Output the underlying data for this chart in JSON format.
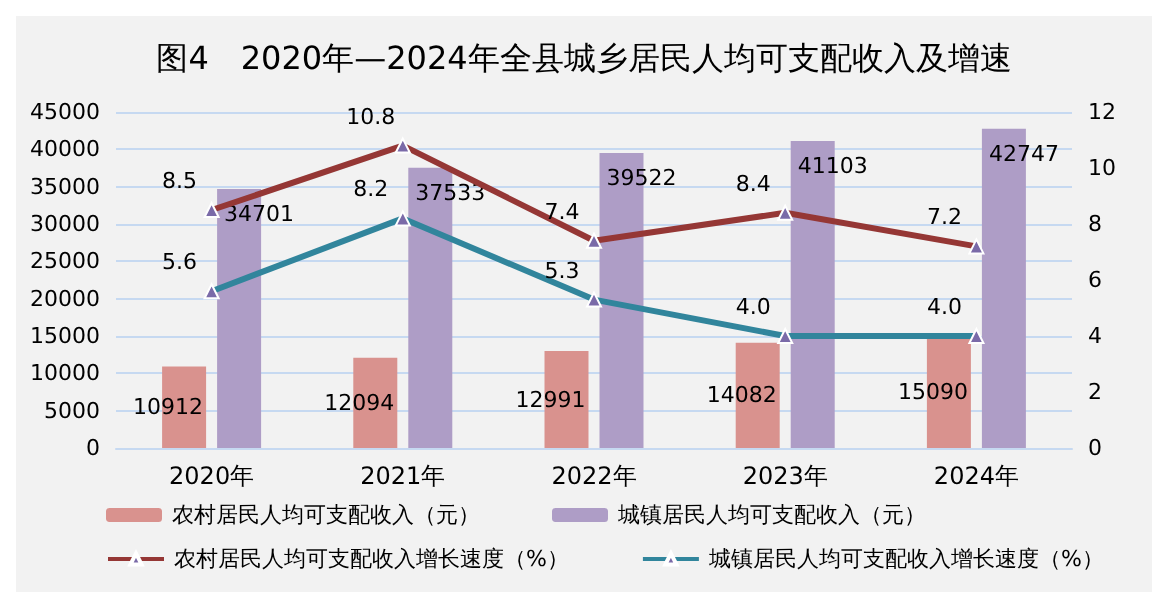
{
  "chart_data": {
    "type": "bar",
    "title": "图4　2020年—2024年全县城乡居民人均可支配收入及增速",
    "categories": [
      "2020年",
      "2021年",
      "2022年",
      "2023年",
      "2024年"
    ],
    "series": [
      {
        "name": "农村居民人均可支配收入（元）",
        "color": "#d9928e",
        "values": [
          10912,
          12094,
          12991,
          14082,
          15090
        ]
      },
      {
        "name": "城镇居民人均可支配收入（元）",
        "color": "#ae9dc6",
        "values": [
          34701,
          37533,
          39522,
          41103,
          42747
        ]
      },
      {
        "name": "农村居民人均可支配收入增长速度（%）",
        "type": "line",
        "axis": "y2",
        "color": "#953735",
        "values": [
          8.5,
          10.8,
          7.4,
          8.4,
          7.2
        ]
      },
      {
        "name": "城镇居民人均可支配收入增长速度（%）",
        "type": "line",
        "axis": "y2",
        "color": "#31859c",
        "values": [
          5.6,
          8.2,
          5.3,
          4.0,
          4.0
        ],
        "value_labels": [
          "5.6",
          "8.2",
          "5.3",
          "4.0",
          "4.0"
        ]
      }
    ],
    "ylim": [
      0,
      45000
    ],
    "yticks": [
      0,
      5000,
      10000,
      15000,
      20000,
      25000,
      30000,
      35000,
      40000,
      45000
    ],
    "y2lim": [
      0,
      12
    ],
    "y2ticks": [
      0,
      2,
      4,
      6,
      8,
      10,
      12
    ],
    "grid": "y",
    "legend": "bottom",
    "marker": "triangle",
    "data_labels": true
  }
}
